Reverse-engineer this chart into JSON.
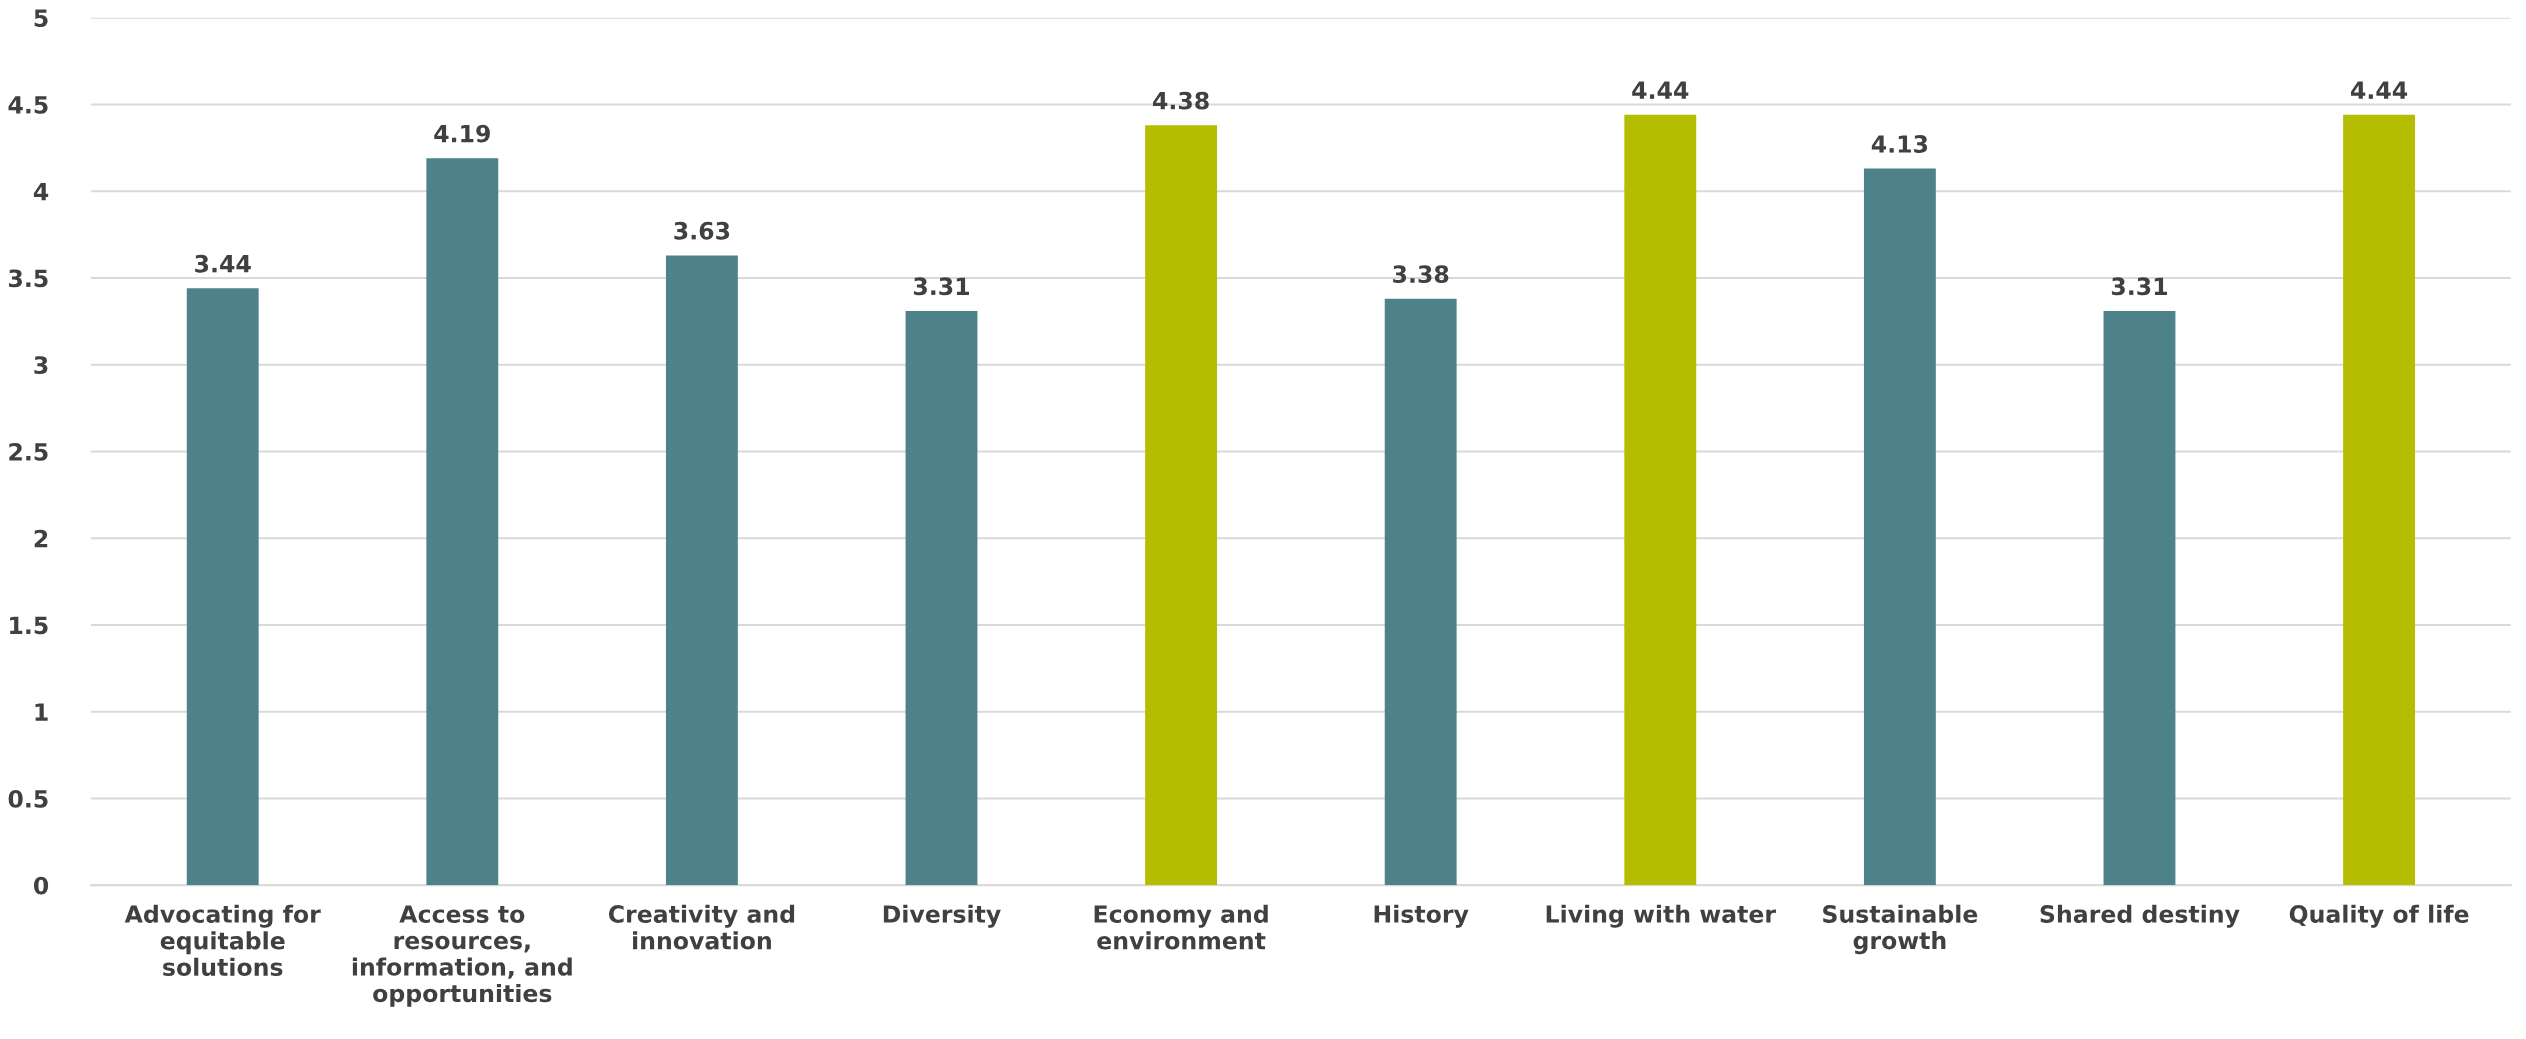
{
  "chart_data": {
    "type": "bar",
    "categories": [
      "Advocating for\nequitable\nsolutions",
      "Access to\nresources,\ninformation, and\nopportunities",
      "Creativity and\ninnovation",
      "Diversity",
      "Economy and\nenvironment",
      "History",
      "Living with water",
      "Sustainable\ngrowth",
      "Shared destiny",
      "Quality of life"
    ],
    "values": [
      3.44,
      4.19,
      3.63,
      3.31,
      4.38,
      3.38,
      4.44,
      4.13,
      3.31,
      4.44
    ],
    "colors": [
      "#4e828a",
      "#4e828a",
      "#4e828a",
      "#4e828a",
      "#b5bd00",
      "#4e828a",
      "#b5bd00",
      "#4e828a",
      "#4e828a",
      "#b5bd00"
    ],
    "data_labels": true,
    "ylim": [
      0,
      5
    ],
    "yticks": [
      0,
      0.5,
      1,
      1.5,
      2,
      2.5,
      3,
      3.5,
      4,
      4.5,
      5
    ],
    "grid": "y",
    "legend": false
  }
}
